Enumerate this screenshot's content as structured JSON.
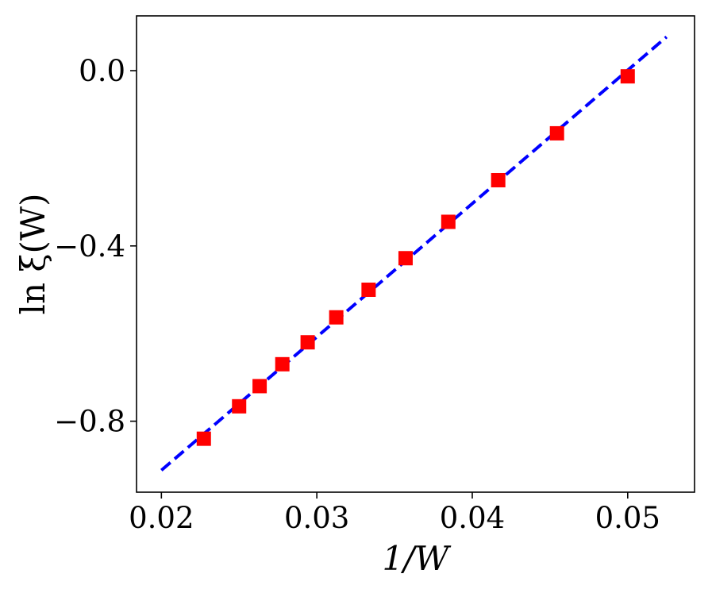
{
  "chart_data": {
    "type": "scatter",
    "xlabel": "1/W",
    "ylabel": "ln ξ(W)",
    "xlim": [
      0.0184,
      0.0543
    ],
    "ylim": [
      -0.962,
      0.125
    ],
    "xticks": [
      0.02,
      0.03,
      0.04,
      0.05
    ],
    "xtick_labels": [
      "0.02",
      "0.03",
      "0.04",
      "0.05"
    ],
    "yticks": [
      0.0,
      -0.4,
      -0.8
    ],
    "ytick_labels": [
      "0.0",
      "−0.4",
      "−0.8"
    ],
    "grid": false,
    "series": [
      {
        "marker": "square",
        "color": "#ff0000",
        "x": [
          0.02273,
          0.025,
          0.02632,
          0.02778,
          0.02941,
          0.03125,
          0.03333,
          0.03571,
          0.03846,
          0.04167,
          0.04545,
          0.05
        ],
        "y": [
          -0.84,
          -0.766,
          -0.72,
          -0.67,
          -0.62,
          -0.563,
          -0.5,
          -0.428,
          -0.345,
          -0.25,
          -0.143,
          -0.013
        ]
      },
      {
        "style": "dashed-line",
        "color": "#0000ff",
        "x": [
          0.02,
          0.0525
        ],
        "y": [
          -0.912,
          0.077
        ]
      }
    ]
  }
}
